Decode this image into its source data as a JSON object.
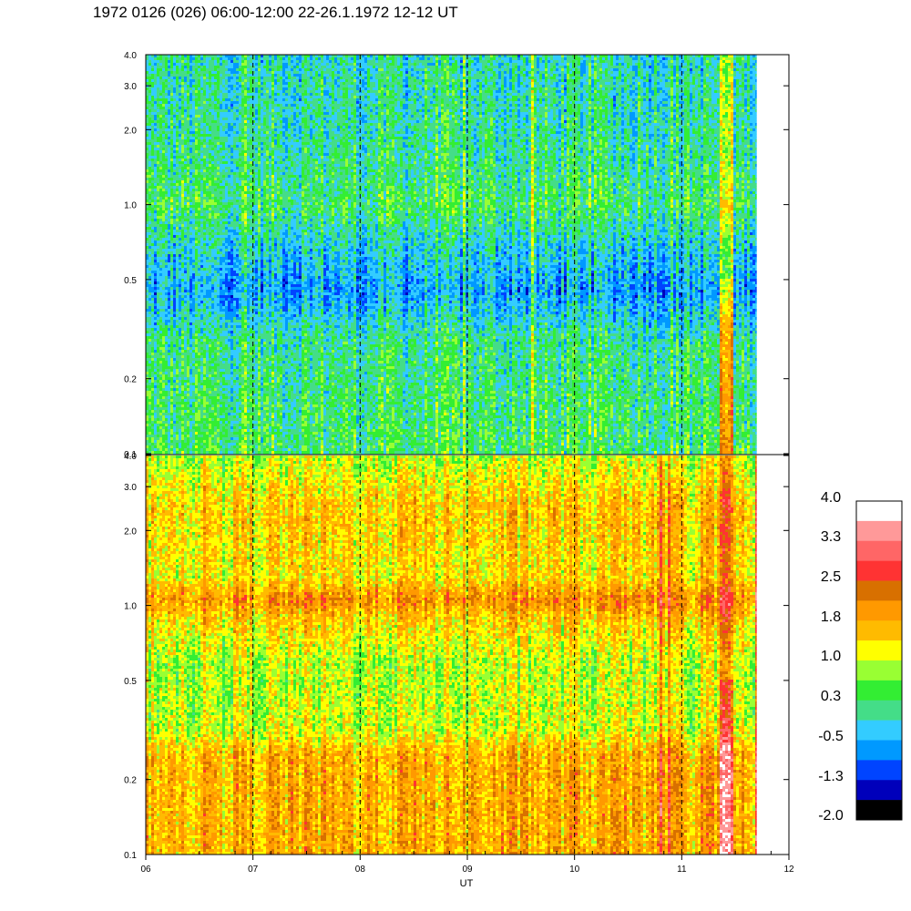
{
  "title": "1972 0126 (026) 06:00-12:00 22-26.1.1972  12-12 UT",
  "chart_data": {
    "type": "heatmap",
    "xlabel": "UT",
    "xlim": [
      6,
      12
    ],
    "x_ticks": [
      "06",
      "07",
      "08",
      "09",
      "10",
      "11",
      "12"
    ],
    "data_end_hour": 11.7,
    "dashed_hours": [
      7,
      8,
      9,
      10,
      11
    ],
    "panels": [
      {
        "name": "",
        "ylabel": "",
        "yscale": "log",
        "ylim": [
          0.1,
          4.0
        ],
        "y_ticks": [
          {
            "value": 0.1,
            "label": "0.1"
          },
          {
            "value": 0.2,
            "label": "0.2"
          },
          {
            "value": 0.5,
            "label": "0.5"
          },
          {
            "value": 1.0,
            "label": "1.0"
          },
          {
            "value": 2.0,
            "label": "2.0"
          },
          {
            "value": 3.0,
            "label": "3.0"
          },
          {
            "value": 4.0,
            "label": "4.0"
          }
        ],
        "profile": [
          [
            0.1,
            0.3
          ],
          [
            0.28,
            0.1
          ],
          [
            0.45,
            -0.6
          ],
          [
            0.7,
            -0.2
          ],
          [
            1.0,
            0.3
          ],
          [
            1.4,
            0.1
          ],
          [
            2.0,
            0.0
          ],
          [
            4.0,
            -0.1
          ]
        ]
      },
      {
        "name": "",
        "ylabel": "",
        "yscale": "log",
        "ylim": [
          0.1,
          4.0
        ],
        "y_ticks": [
          {
            "value": 0.1,
            "label": "0.1"
          },
          {
            "value": 0.2,
            "label": "0.2"
          },
          {
            "value": 0.5,
            "label": "0.5"
          },
          {
            "value": 1.0,
            "label": "1.0"
          },
          {
            "value": 2.0,
            "label": "2.0"
          },
          {
            "value": 3.0,
            "label": "3.0"
          },
          {
            "value": 4.0,
            "label": "4.0"
          }
        ],
        "profile": [
          [
            0.1,
            1.7
          ],
          [
            0.25,
            1.7
          ],
          [
            0.32,
            1.0
          ],
          [
            0.6,
            0.9
          ],
          [
            0.9,
            1.5
          ],
          [
            1.05,
            2.0
          ],
          [
            1.3,
            1.3
          ],
          [
            2.5,
            1.5
          ],
          [
            4.0,
            0.9
          ]
        ]
      }
    ],
    "colorbar": {
      "labels": [
        "4.0",
        "3.3",
        "2.5",
        "1.8",
        "1.0",
        "0.3",
        "-0.5",
        "-1.3",
        "-2.0"
      ],
      "colors": [
        "#ffffff",
        "#ff9999",
        "#ff6666",
        "#ff3333",
        "#d87000",
        "#ff9900",
        "#ffbb00",
        "#ffff00",
        "#99ff33",
        "#33ee33",
        "#44dd88",
        "#33ccff",
        "#0099ff",
        "#0044ff",
        "#0000bb",
        "#000000"
      ]
    }
  }
}
